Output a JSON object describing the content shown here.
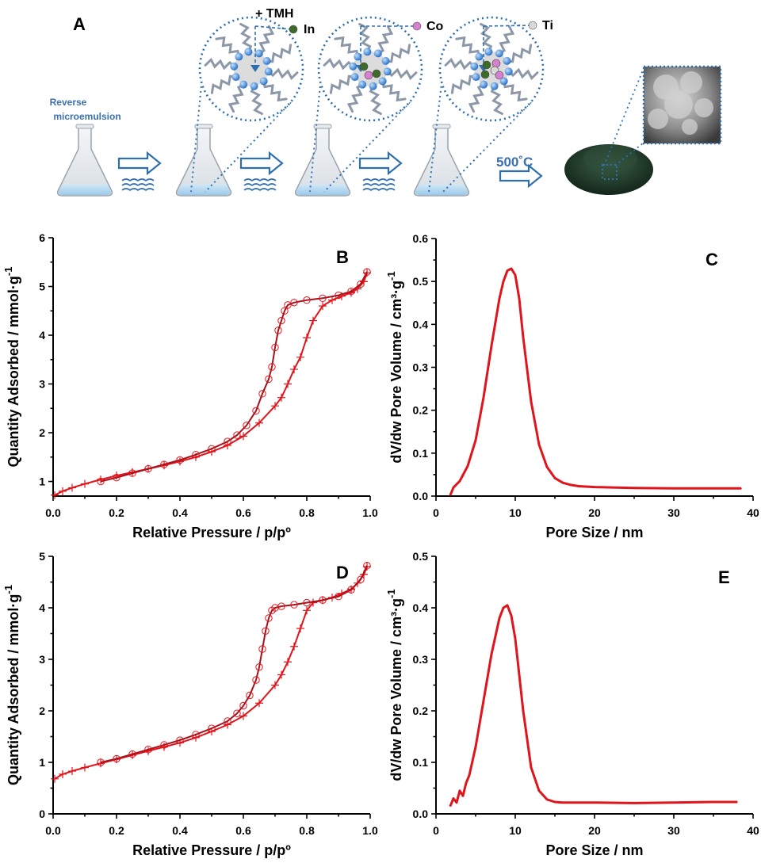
{
  "schematic": {
    "panel_label": "A",
    "reagent_label": "+ TMH",
    "element_labels": [
      "In",
      "Co",
      "Ti"
    ],
    "element_colors": [
      "#3d6b2a",
      "#d77fd0",
      "#d9d9d9"
    ],
    "process_label_line1": "Reverse",
    "process_label_line2": "microemulsion",
    "temperature_label": "500˚C",
    "colors": {
      "accent": "#2e6fb0",
      "powder": "#1f3d2b"
    }
  },
  "chart_data": [
    {
      "panel": "B",
      "type": "line",
      "xlabel": "Relative Pressure / p/pº",
      "ylabel": "Quantity Adsorbed / mmol·g",
      "ylabel_superscript": "-1",
      "xlim": [
        0.0,
        1.0
      ],
      "ylim": [
        0.7,
        6.0
      ],
      "xticks": [
        "0.0",
        "0.2",
        "0.4",
        "0.6",
        "0.8",
        "1.0"
      ],
      "yticks": [
        "1",
        "2",
        "3",
        "4",
        "5",
        "6"
      ],
      "color": "#e0141b",
      "series": [
        {
          "marker": "plus",
          "x": [
            0.005,
            0.03,
            0.06,
            0.1,
            0.15,
            0.2,
            0.25,
            0.3,
            0.35,
            0.4,
            0.45,
            0.5,
            0.55,
            0.6,
            0.65,
            0.7,
            0.72,
            0.74,
            0.76,
            0.78,
            0.8,
            0.82,
            0.85,
            0.88,
            0.91,
            0.94,
            0.96,
            0.98,
            0.99
          ],
          "y": [
            0.72,
            0.8,
            0.87,
            0.95,
            1.04,
            1.12,
            1.19,
            1.26,
            1.33,
            1.41,
            1.5,
            1.61,
            1.74,
            1.93,
            2.2,
            2.55,
            2.72,
            3.0,
            3.3,
            3.55,
            3.95,
            4.3,
            4.6,
            4.72,
            4.8,
            4.87,
            4.95,
            5.1,
            5.28
          ]
        },
        {
          "marker": "circle",
          "x": [
            0.15,
            0.2,
            0.25,
            0.3,
            0.35,
            0.4,
            0.45,
            0.5,
            0.55,
            0.58,
            0.61,
            0.64,
            0.66,
            0.68,
            0.69,
            0.7,
            0.71,
            0.72,
            0.73,
            0.74,
            0.76,
            0.8,
            0.85,
            0.9,
            0.94,
            0.97,
            0.99
          ],
          "y": [
            1.0,
            1.08,
            1.17,
            1.26,
            1.35,
            1.44,
            1.55,
            1.67,
            1.82,
            1.95,
            2.15,
            2.45,
            2.8,
            3.1,
            3.35,
            3.75,
            4.1,
            4.3,
            4.5,
            4.62,
            4.67,
            4.72,
            4.76,
            4.82,
            4.9,
            5.05,
            5.3
          ]
        }
      ]
    },
    {
      "panel": "C",
      "type": "line",
      "xlabel": "Pore Size / nm",
      "ylabel": "dV/dw Pore Volume / cm³·g",
      "ylabel_superscript": "-1",
      "xlim": [
        0,
        40
      ],
      "ylim": [
        0.0,
        0.6
      ],
      "xticks": [
        "0",
        "10",
        "20",
        "30",
        "40"
      ],
      "yticks": [
        "0.0",
        "0.1",
        "0.2",
        "0.3",
        "0.4",
        "0.5",
        "0.6"
      ],
      "color": "#e0141b",
      "x": [
        1.8,
        2.2,
        3,
        4,
        5,
        6,
        7,
        8,
        8.5,
        9,
        9.5,
        10,
        10.5,
        11,
        12,
        13,
        14,
        15,
        16,
        17,
        18,
        20,
        25,
        30,
        35,
        38.5
      ],
      "y": [
        0.002,
        0.02,
        0.035,
        0.07,
        0.13,
        0.23,
        0.35,
        0.46,
        0.5,
        0.525,
        0.53,
        0.515,
        0.46,
        0.37,
        0.22,
        0.12,
        0.068,
        0.042,
        0.031,
        0.026,
        0.023,
        0.021,
        0.019,
        0.018,
        0.018,
        0.018
      ]
    },
    {
      "panel": "D",
      "type": "line",
      "xlabel": "Relative Pressure / p/pº",
      "ylabel": "Quantity Adsorbed / mmol·g",
      "ylabel_superscript": "-1",
      "xlim": [
        0.0,
        1.0
      ],
      "ylim": [
        0.0,
        5.0
      ],
      "xticks": [
        "0.0",
        "0.2",
        "0.4",
        "0.6",
        "0.8",
        "1.0"
      ],
      "yticks": [
        "0",
        "1",
        "2",
        "3",
        "4",
        "5"
      ],
      "color": "#e0141b",
      "series": [
        {
          "marker": "plus",
          "x": [
            0.005,
            0.03,
            0.06,
            0.1,
            0.15,
            0.2,
            0.25,
            0.3,
            0.35,
            0.4,
            0.45,
            0.5,
            0.55,
            0.6,
            0.65,
            0.7,
            0.72,
            0.74,
            0.76,
            0.78,
            0.8,
            0.82,
            0.85,
            0.88,
            0.91,
            0.94,
            0.96,
            0.98,
            0.99
          ],
          "y": [
            0.68,
            0.77,
            0.83,
            0.9,
            0.98,
            1.06,
            1.14,
            1.22,
            1.3,
            1.38,
            1.48,
            1.6,
            1.73,
            1.9,
            2.15,
            2.5,
            2.7,
            2.95,
            3.25,
            3.6,
            3.95,
            4.1,
            4.15,
            4.2,
            4.28,
            4.36,
            4.48,
            4.65,
            4.8
          ]
        },
        {
          "marker": "circle",
          "x": [
            0.15,
            0.2,
            0.25,
            0.3,
            0.35,
            0.4,
            0.45,
            0.5,
            0.55,
            0.58,
            0.6,
            0.62,
            0.64,
            0.65,
            0.66,
            0.67,
            0.68,
            0.69,
            0.7,
            0.72,
            0.76,
            0.8,
            0.85,
            0.9,
            0.94,
            0.97,
            0.99
          ],
          "y": [
            1.0,
            1.07,
            1.16,
            1.25,
            1.34,
            1.43,
            1.54,
            1.66,
            1.8,
            1.95,
            2.1,
            2.3,
            2.6,
            2.85,
            3.2,
            3.55,
            3.8,
            3.95,
            4.0,
            4.03,
            4.06,
            4.1,
            4.15,
            4.22,
            4.35,
            4.55,
            4.82
          ]
        }
      ]
    },
    {
      "panel": "E",
      "type": "line",
      "xlabel": "Pore Size / nm",
      "ylabel": "dV/dw Pore Volume / cm³·g",
      "ylabel_superscript": "-1",
      "xlim": [
        0,
        40
      ],
      "ylim": [
        0.0,
        0.5
      ],
      "xticks": [
        "0",
        "10",
        "20",
        "30",
        "40"
      ],
      "yticks": [
        "0.0",
        "0.1",
        "0.2",
        "0.3",
        "0.4",
        "0.5"
      ],
      "color": "#e0141b",
      "x": [
        1.8,
        2.2,
        2.6,
        3.0,
        3.4,
        3.8,
        4.2,
        5,
        6,
        7,
        8,
        8.5,
        9,
        9.5,
        10,
        10.5,
        11,
        12,
        13,
        14,
        15,
        16,
        20,
        25,
        30,
        35,
        38
      ],
      "y": [
        0.015,
        0.03,
        0.022,
        0.045,
        0.035,
        0.06,
        0.075,
        0.13,
        0.22,
        0.31,
        0.38,
        0.4,
        0.405,
        0.385,
        0.34,
        0.27,
        0.2,
        0.09,
        0.045,
        0.028,
        0.023,
        0.022,
        0.022,
        0.021,
        0.022,
        0.023,
        0.023
      ]
    }
  ]
}
